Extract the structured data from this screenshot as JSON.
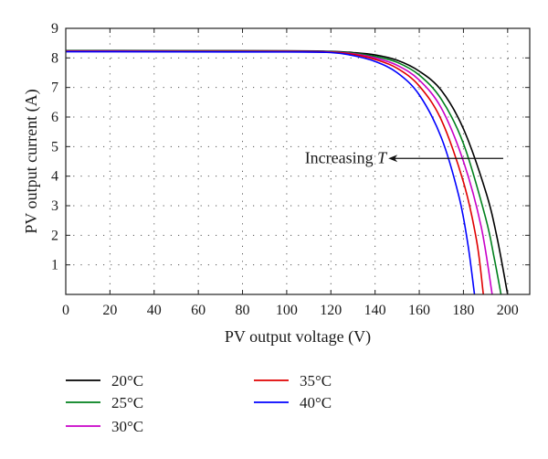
{
  "chart_data": {
    "type": "line",
    "title": "",
    "xlabel": "PV output voltage (V)",
    "ylabel": "PV output current (A)",
    "xlim": [
      0,
      210
    ],
    "ylim": [
      0,
      9
    ],
    "xticks": [
      0,
      20,
      40,
      60,
      80,
      100,
      120,
      140,
      160,
      180,
      200
    ],
    "yticks": [
      1,
      2,
      3,
      4,
      5,
      6,
      7,
      8,
      9
    ],
    "grid": true,
    "legend_position": "below plot, two columns",
    "annotation": {
      "text_prefix": "Increasing ",
      "text_symbol": "T",
      "arrow_from": [
        198,
        4.6
      ],
      "arrow_to": [
        146,
        4.6
      ]
    },
    "series": [
      {
        "name": "20°C",
        "color": "#000000",
        "x": [
          0,
          100,
          120,
          130,
          140,
          150,
          160,
          170,
          180,
          190,
          195,
          200
        ],
        "y": [
          8.25,
          8.24,
          8.22,
          8.18,
          8.1,
          7.92,
          7.55,
          6.9,
          5.6,
          3.5,
          2.0,
          0.0
        ]
      },
      {
        "name": "25°C",
        "color": "#00801c",
        "x": [
          0,
          100,
          120,
          130,
          140,
          150,
          160,
          170,
          180,
          190,
          194,
          197
        ],
        "y": [
          8.24,
          8.23,
          8.21,
          8.16,
          8.05,
          7.85,
          7.42,
          6.6,
          5.1,
          2.6,
          1.2,
          0.0
        ]
      },
      {
        "name": "30°C",
        "color": "#c800c8",
        "x": [
          0,
          100,
          120,
          130,
          140,
          150,
          160,
          170,
          180,
          188,
          193
        ],
        "y": [
          8.23,
          8.22,
          8.2,
          8.14,
          8.0,
          7.75,
          7.25,
          6.3,
          4.5,
          2.3,
          0.0
        ]
      },
      {
        "name": "35°C",
        "color": "#e00000",
        "x": [
          0,
          100,
          120,
          130,
          140,
          150,
          160,
          170,
          180,
          186,
          189
        ],
        "y": [
          8.22,
          8.21,
          8.19,
          8.12,
          7.95,
          7.65,
          7.05,
          5.9,
          3.8,
          1.8,
          0.0
        ]
      },
      {
        "name": "40°C",
        "color": "#0000ff",
        "x": [
          0,
          100,
          120,
          130,
          140,
          150,
          160,
          170,
          178,
          182,
          185
        ],
        "y": [
          8.21,
          8.2,
          8.18,
          8.08,
          7.88,
          7.5,
          6.75,
          5.3,
          3.3,
          1.7,
          0.0
        ]
      }
    ]
  }
}
